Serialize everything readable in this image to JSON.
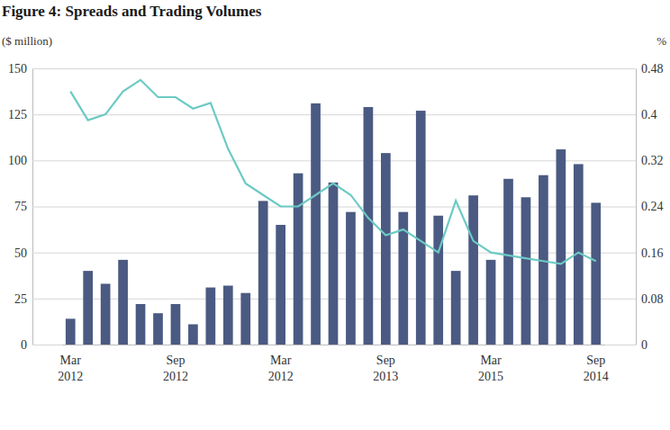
{
  "chart_data": {
    "type": "bar",
    "title": "Figure 4: Spreads and Trading Volumes",
    "ylabel": "($ million)",
    "y2label": "%",
    "categories": [
      "Mar 2012",
      null,
      null,
      null,
      null,
      null,
      "Sep 2012",
      null,
      null,
      null,
      null,
      null,
      "Mar 2012",
      null,
      null,
      null,
      null,
      null,
      "Sep 2013",
      null,
      null,
      null,
      null,
      null,
      "Mar 2015",
      null,
      null,
      null,
      null,
      null,
      "Sep 2014"
    ],
    "series": [
      {
        "type": "bar",
        "color": "#4b5a82",
        "values": [
          14,
          40,
          33,
          46,
          22,
          17,
          22,
          11,
          31,
          32,
          28,
          78,
          65,
          93,
          131,
          88,
          72,
          129,
          104,
          72,
          127,
          70,
          40,
          81,
          46,
          90,
          80,
          92,
          106,
          98,
          77
        ]
      },
      {
        "type": "line",
        "color": "#6ccac4",
        "axis": "y2",
        "values": [
          0.44,
          0.39,
          0.4,
          0.44,
          0.46,
          0.43,
          0.43,
          0.41,
          0.42,
          0.34,
          0.28,
          0.26,
          0.24,
          0.24,
          0.26,
          0.28,
          0.26,
          0.22,
          0.19,
          0.2,
          0.18,
          0.16,
          0.25,
          0.18,
          0.16,
          0.155,
          0.15,
          0.145,
          0.14,
          0.16,
          0.145
        ]
      }
    ],
    "ylim": [
      0,
      150
    ],
    "yticks": [
      0,
      25,
      50,
      75,
      100,
      125,
      150
    ],
    "y2lim": [
      0,
      0.48
    ],
    "y2ticks": [
      0,
      0.08,
      0.16,
      0.24,
      0.32,
      0.4,
      0.48
    ],
    "grid": true
  }
}
